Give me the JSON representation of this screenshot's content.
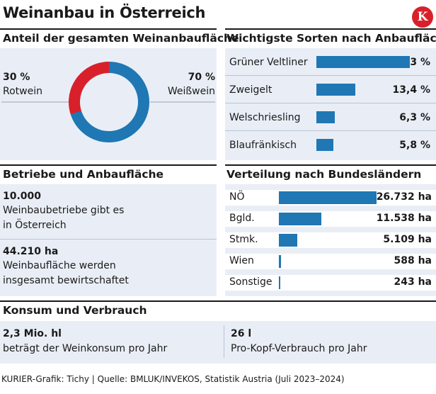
{
  "header": {
    "title": "Weinanbau in Österreich",
    "logo_letter": "K"
  },
  "colors": {
    "rot": "#d8202a",
    "weiss": "#1f77b4",
    "panel": "#e9eef6"
  },
  "sections": {
    "anteil": "Anteil der gesamten Weinanbaufläche",
    "sorten": "Wichtigste Sorten nach Anbaufläche",
    "betriebe": "Betriebe und Anbaufläche",
    "verteilung": "Verteilung nach Bundesländern",
    "konsum": "Konsum und Verbrauch"
  },
  "chart_data": [
    {
      "type": "pie",
      "title": "Anteil der gesamten Weinanbaufläche",
      "slices": [
        {
          "label": "Rotwein",
          "value_label": "30 %",
          "value": 30
        },
        {
          "label": "Weißwein",
          "value_label": "70 %",
          "value": 70
        }
      ]
    },
    {
      "type": "bar",
      "title": "Wichtigste Sorten nach Anbaufläche",
      "categories": [
        "Grüner Veltliner",
        "Zweigelt",
        "Welschriesling",
        "Blaufränkisch"
      ],
      "values": [
        32.3,
        13.4,
        6.3,
        5.8
      ],
      "value_labels": [
        "32,3 %",
        "13,4 %",
        "6,3 %",
        "5,8 %"
      ]
    },
    {
      "type": "bar",
      "title": "Verteilung nach Bundesländern",
      "categories": [
        "NÖ",
        "Bgld.",
        "Stmk.",
        "Wien",
        "Sonstige"
      ],
      "values": [
        26732,
        11538,
        5109,
        588,
        243
      ],
      "value_labels": [
        "26.732 ha",
        "11.538 ha",
        "5.109 ha",
        "588 ha",
        "243 ha"
      ]
    }
  ],
  "betriebe": {
    "items": [
      {
        "value": "10.000",
        "line1": "Weinbaubetriebe gibt es",
        "line2": "in Österreich"
      },
      {
        "value": "44.210 ha",
        "line1": "Weinbaufläche werden",
        "line2": "insgesamt bewirtschaftet"
      }
    ]
  },
  "konsum": {
    "left": {
      "value": "2,3 Mio. hl",
      "text": "beträgt der Weinkonsum pro Jahr"
    },
    "right": {
      "value": "26 l",
      "text": "Pro-Kopf-Verbrauch pro Jahr"
    }
  },
  "footer": {
    "source": "KURIER-Grafik: Tichy | Quelle: BMLUK/INVEKOS, Statistik Austria (Juli 2023–2024)"
  }
}
